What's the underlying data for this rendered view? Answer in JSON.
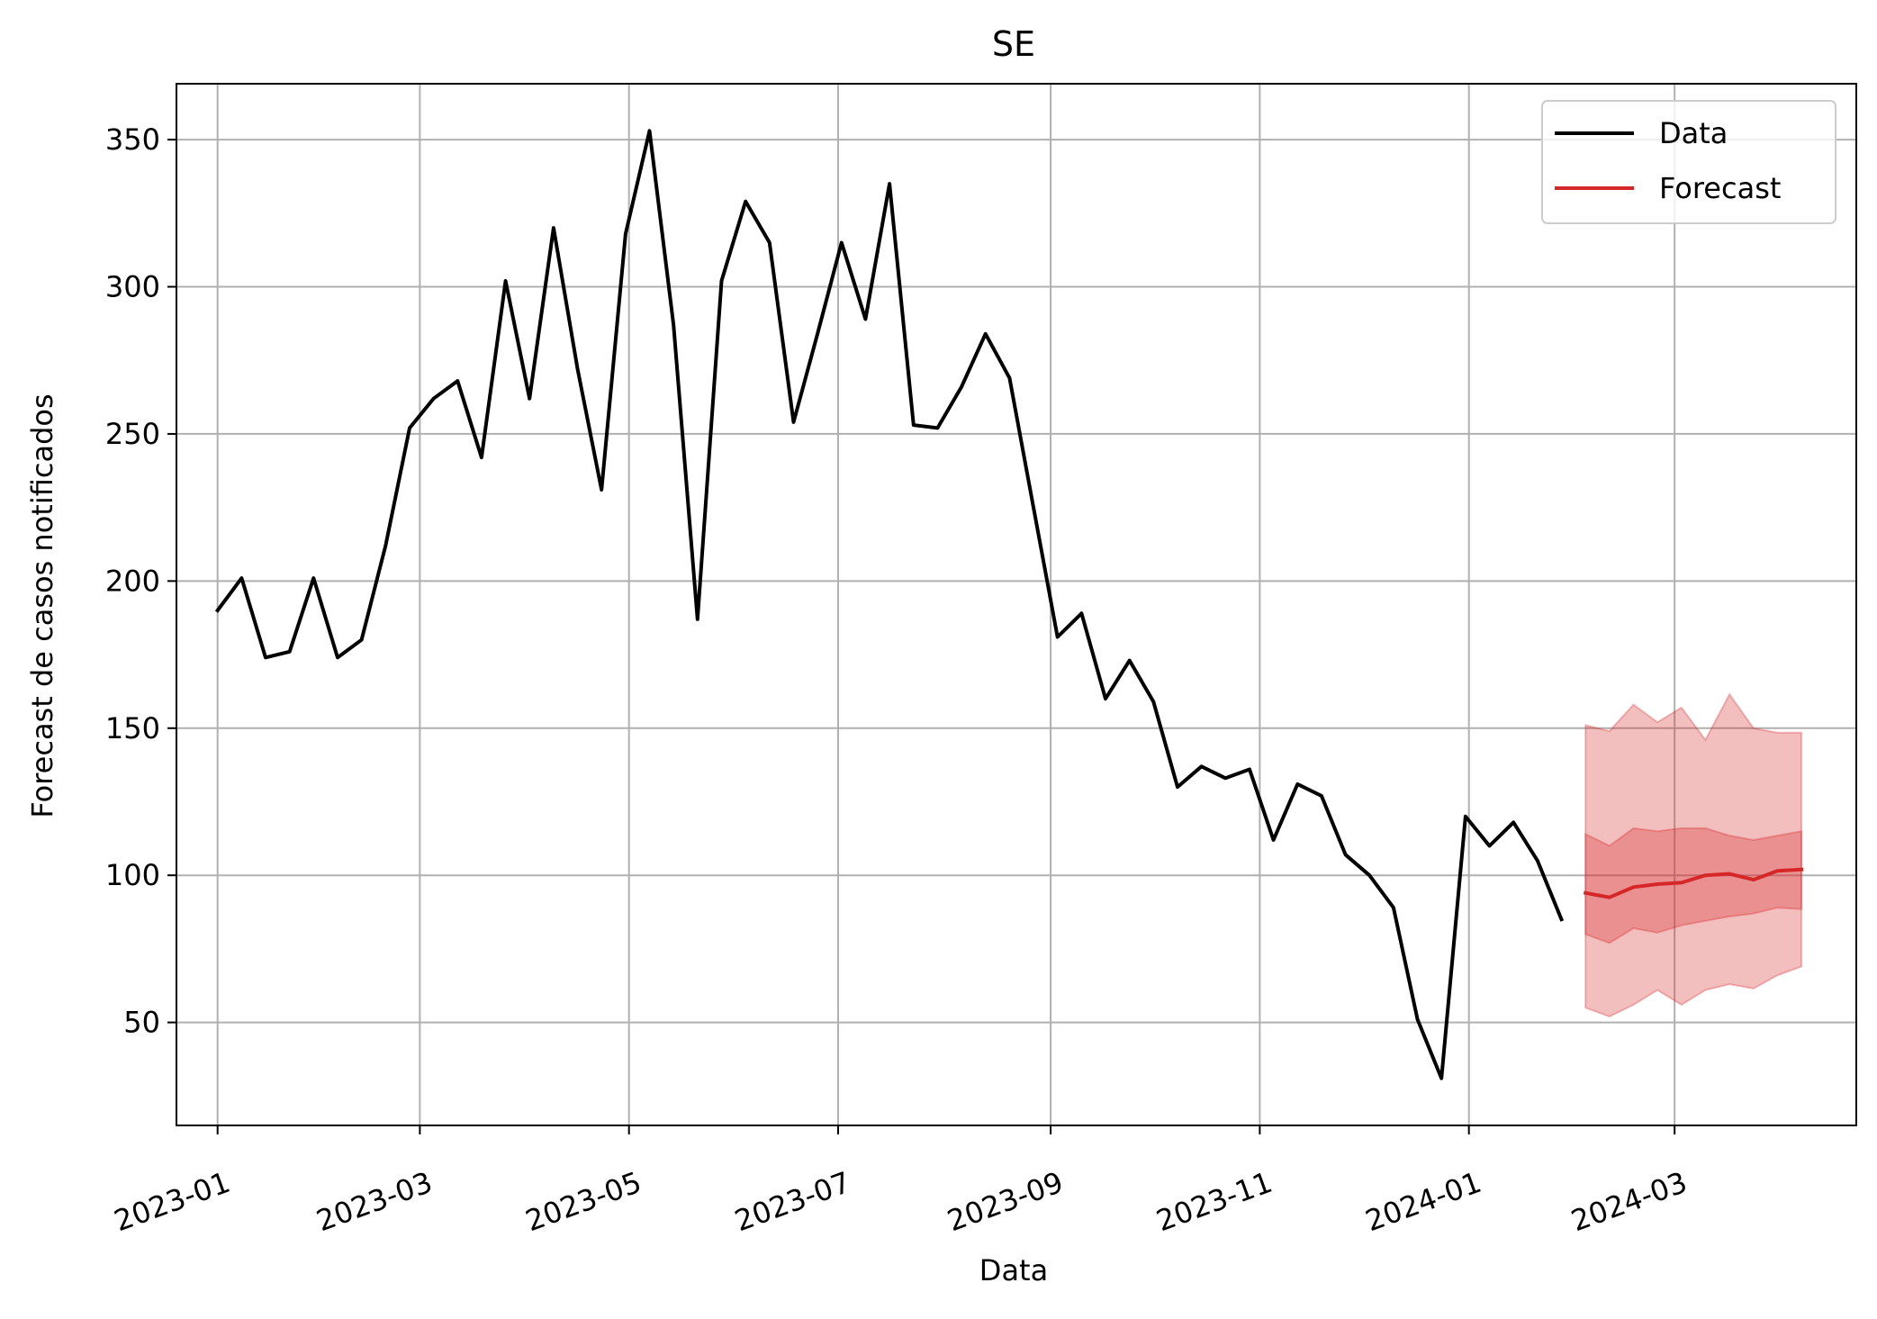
{
  "chart_data": {
    "type": "line",
    "title": "SE",
    "xlabel": "Data",
    "ylabel": "Forecast de casos notificados",
    "grid": true,
    "legend_position": "top-right",
    "xlim": [
      "2022-12-20",
      "2024-04-23"
    ],
    "ylim": [
      15,
      369
    ],
    "x_ticks": [
      "2023-01",
      "2023-03",
      "2023-05",
      "2023-07",
      "2023-09",
      "2023-11",
      "2024-01",
      "2024-03"
    ],
    "y_ticks": [
      50,
      100,
      150,
      200,
      250,
      300,
      350
    ],
    "legend": [
      {
        "label": "Data",
        "color": "#000000"
      },
      {
        "label": "Forecast",
        "color": "#d62728"
      }
    ],
    "series": [
      {
        "name": "Data",
        "color": "#000000",
        "x": [
          "2023-01-01",
          "2023-01-08",
          "2023-01-15",
          "2023-01-22",
          "2023-01-29",
          "2023-02-05",
          "2023-02-12",
          "2023-02-19",
          "2023-02-26",
          "2023-03-05",
          "2023-03-12",
          "2023-03-19",
          "2023-03-26",
          "2023-04-02",
          "2023-04-09",
          "2023-04-16",
          "2023-04-23",
          "2023-04-30",
          "2023-05-07",
          "2023-05-14",
          "2023-05-21",
          "2023-05-28",
          "2023-06-04",
          "2023-06-11",
          "2023-06-18",
          "2023-06-25",
          "2023-07-02",
          "2023-07-09",
          "2023-07-16",
          "2023-07-23",
          "2023-07-30",
          "2023-08-06",
          "2023-08-13",
          "2023-08-20",
          "2023-08-27",
          "2023-09-03",
          "2023-09-10",
          "2023-09-17",
          "2023-09-24",
          "2023-10-01",
          "2023-10-08",
          "2023-10-15",
          "2023-10-22",
          "2023-10-29",
          "2023-11-05",
          "2023-11-12",
          "2023-11-19",
          "2023-11-26",
          "2023-12-03",
          "2023-12-10",
          "2023-12-17",
          "2023-12-24",
          "2023-12-31",
          "2024-01-07",
          "2024-01-14",
          "2024-01-21",
          "2024-01-28"
        ],
        "values": [
          190,
          201,
          174,
          176,
          201,
          174,
          180,
          212,
          252,
          262,
          268,
          242,
          302,
          262,
          320,
          272,
          231,
          318,
          353,
          287,
          187,
          302,
          329,
          315,
          254,
          284,
          315,
          289,
          335,
          253,
          252,
          266,
          284,
          269,
          225,
          181,
          189,
          160,
          173,
          159,
          130,
          137,
          133,
          136,
          112,
          131,
          127,
          107,
          100,
          89,
          51,
          31,
          120,
          110,
          118,
          105,
          85
        ]
      },
      {
        "name": "Forecast",
        "color": "#d62728",
        "x": [
          "2024-02-04",
          "2024-02-11",
          "2024-02-18",
          "2024-02-25",
          "2024-03-03",
          "2024-03-10",
          "2024-03-17",
          "2024-03-24",
          "2024-03-31",
          "2024-04-07"
        ],
        "values": [
          94,
          92.5,
          96,
          97,
          97.5,
          100,
          100.5,
          98.5,
          101.5,
          102
        ],
        "lower_50": [
          80,
          77,
          82,
          80.5,
          83,
          84.5,
          86,
          87,
          89,
          88.5
        ],
        "upper_50": [
          114,
          110,
          116,
          115,
          116,
          116,
          113.5,
          112,
          113.5,
          115
        ],
        "lower_90": [
          55,
          52,
          56,
          61,
          56,
          61,
          63,
          61.5,
          66,
          69
        ],
        "upper_90": [
          151,
          149,
          158,
          152,
          157,
          146,
          161.5,
          150,
          148.5,
          148.5
        ]
      }
    ]
  }
}
